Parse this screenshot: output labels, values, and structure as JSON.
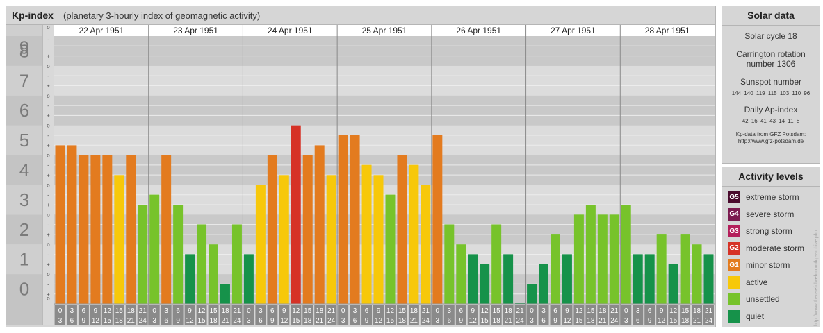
{
  "header": {
    "title": "Kp-index",
    "subtitle": "(planetary 3-hourly index of geomagnetic activity)"
  },
  "chart_data": {
    "type": "bar",
    "title": "Kp-index",
    "subtitle": "(planetary 3-hourly index of geomagnetic activity)",
    "ylim": [
      0,
      9
    ],
    "y_ticks": [
      "0",
      "1",
      "2",
      "3",
      "4",
      "5",
      "6",
      "7",
      "8",
      "9"
    ],
    "minor_tick_labels": [
      "+",
      "o",
      "-"
    ],
    "days": [
      "22 Apr 1951",
      "23 Apr 1951",
      "24 Apr 1951",
      "25 Apr 1951",
      "26 Apr 1951",
      "27 Apr 1951",
      "28 Apr 1951"
    ],
    "interval_labels": [
      [
        "0",
        "3"
      ],
      [
        "3",
        "6"
      ],
      [
        "6",
        "9"
      ],
      [
        "9",
        "12"
      ],
      [
        "12",
        "15"
      ],
      [
        "15",
        "18"
      ],
      [
        "18",
        "21"
      ],
      [
        "21",
        "24"
      ]
    ],
    "values": [
      [
        5.33,
        5.33,
        5.0,
        5.0,
        5.0,
        4.33,
        5.0,
        3.33
      ],
      [
        3.67,
        5.0,
        3.33,
        1.67,
        2.67,
        2.0,
        0.67,
        2.67
      ],
      [
        1.67,
        4.0,
        5.0,
        4.33,
        6.0,
        5.0,
        5.33,
        4.33
      ],
      [
        5.67,
        5.67,
        4.67,
        4.33,
        3.67,
        5.0,
        4.67,
        4.0
      ],
      [
        5.67,
        2.67,
        2.0,
        1.67,
        1.33,
        2.67,
        1.67,
        0.0
      ],
      [
        0.67,
        1.33,
        2.33,
        1.67,
        3.0,
        3.33,
        3.0,
        3.0
      ],
      [
        3.33,
        1.67,
        1.67,
        2.33,
        1.33,
        2.33,
        2.0,
        1.67
      ]
    ],
    "thresholds": [
      {
        "min": 0,
        "max": 2,
        "level": "quiet",
        "color": "#16924a"
      },
      {
        "min": 2,
        "max": 4,
        "level": "unsettled",
        "color": "#77c32b"
      },
      {
        "min": 4,
        "max": 5,
        "level": "active",
        "color": "#f7c80a"
      },
      {
        "min": 5,
        "max": 6,
        "level": "minor storm",
        "color": "#e37b1f"
      },
      {
        "min": 6,
        "max": 7,
        "level": "moderate storm",
        "color": "#d63226"
      },
      {
        "min": 7,
        "max": 8,
        "level": "strong storm",
        "color": "#b41e5a"
      },
      {
        "min": 8,
        "max": 9,
        "level": "severe storm",
        "color": "#7b1a4f"
      },
      {
        "min": 9,
        "max": 10,
        "level": "extreme storm",
        "color": "#4a0b2d"
      }
    ],
    "grid": true
  },
  "solar": {
    "title": "Solar data",
    "cycle": "Solar cycle 18",
    "carrington_line1": "Carrington rotation",
    "carrington_line2": "number 1306",
    "sunspot_title": "Sunspot number",
    "sunspot_values": "144 140 119 115 103 110 96",
    "ap_title": "Daily Ap-index",
    "ap_values": "42 16 41 43 14 11 8",
    "source_line1": "Kp-data from GFZ Potsdam:",
    "source_line2": "http://www.gfz-potsdam.de"
  },
  "activity": {
    "title": "Activity levels",
    "items": [
      {
        "code": "G5",
        "label": "extreme storm",
        "color": "#4a0b2d"
      },
      {
        "code": "G4",
        "label": "severe storm",
        "color": "#7b1a4f"
      },
      {
        "code": "G3",
        "label": "strong storm",
        "color": "#b41e5a"
      },
      {
        "code": "G2",
        "label": "moderate storm",
        "color": "#d63226"
      },
      {
        "code": "G1",
        "label": "minor storm",
        "color": "#e37b1f"
      },
      {
        "code": "",
        "label": "active",
        "color": "#f7c80a"
      },
      {
        "code": "",
        "label": "unsettled",
        "color": "#77c32b"
      },
      {
        "code": "",
        "label": "quiet",
        "color": "#16924a"
      }
    ]
  },
  "watermark": "http://www.theusefulweb.com/kp-archive.php"
}
